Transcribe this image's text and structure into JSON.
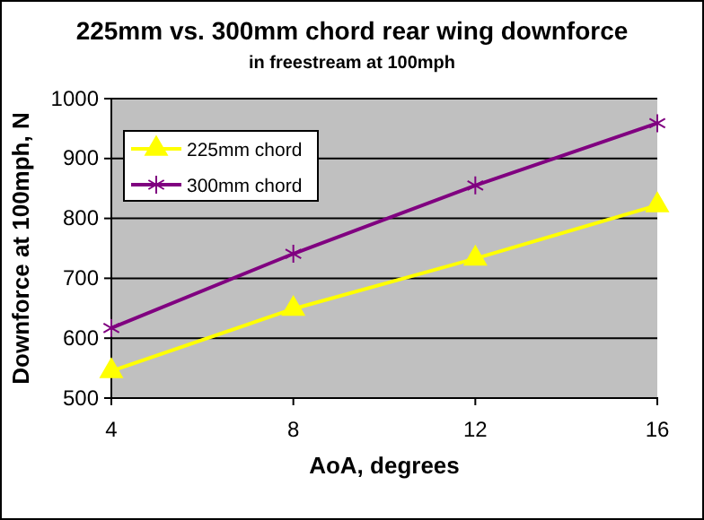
{
  "chart_data": {
    "type": "line",
    "title": "225mm vs. 300mm chord rear wing downforce",
    "subtitle": "in freestream at 100mph",
    "xlabel": "AoA, degrees",
    "ylabel": "Downforce at 100mph, N",
    "x": [
      4,
      8,
      12,
      16
    ],
    "xlim": [
      4,
      16
    ],
    "xticks": [
      4,
      8,
      12,
      16
    ],
    "ylim": [
      500,
      1000
    ],
    "yticks": [
      500,
      600,
      700,
      800,
      900,
      1000
    ],
    "grid": "y",
    "legend": "top left",
    "series": [
      {
        "name": "225mm chord",
        "color": "#ffff00",
        "marker": "triangle",
        "values": [
          545,
          649,
          733,
          822
        ]
      },
      {
        "name": "300mm chord",
        "color": "#800080",
        "marker": "cross",
        "values": [
          617,
          741,
          855,
          959
        ]
      }
    ]
  }
}
